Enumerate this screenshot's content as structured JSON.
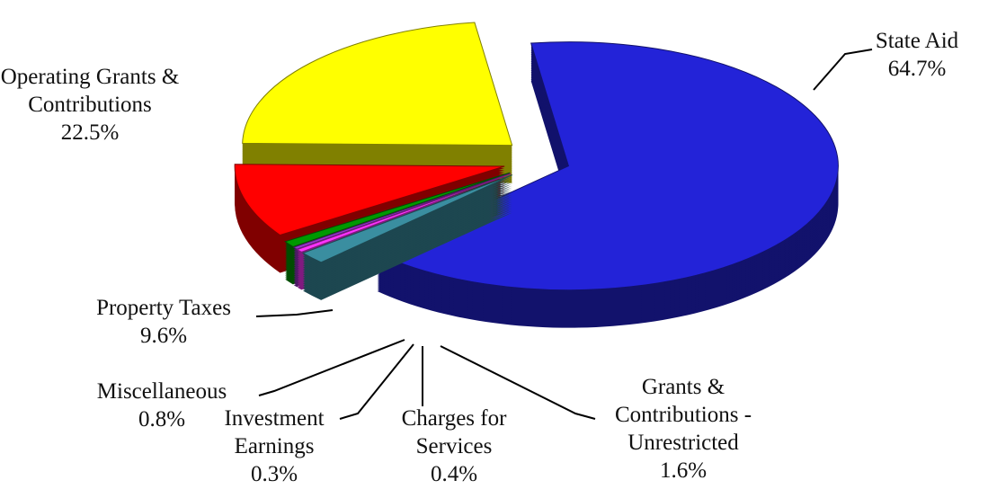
{
  "chart_data": {
    "type": "pie",
    "categories": [
      "State Aid",
      "Grants & Contributions - Unrestricted",
      "Charges for Services",
      "Investment Earnings",
      "Miscellaneous",
      "Property Taxes",
      "Operating Grants & Contributions"
    ],
    "values": [
      64.7,
      1.6,
      0.4,
      0.3,
      0.8,
      9.6,
      22.5
    ],
    "value_labels": [
      "64.7%",
      "1.6%",
      "0.4%",
      "0.3%",
      "0.8%",
      "9.6%",
      "22.5%"
    ],
    "colors": [
      "#2323d8",
      "#3a8ea0",
      "#ff33ff",
      "#9933cc",
      "#009900",
      "#ff0000",
      "#ffff00"
    ]
  }
}
